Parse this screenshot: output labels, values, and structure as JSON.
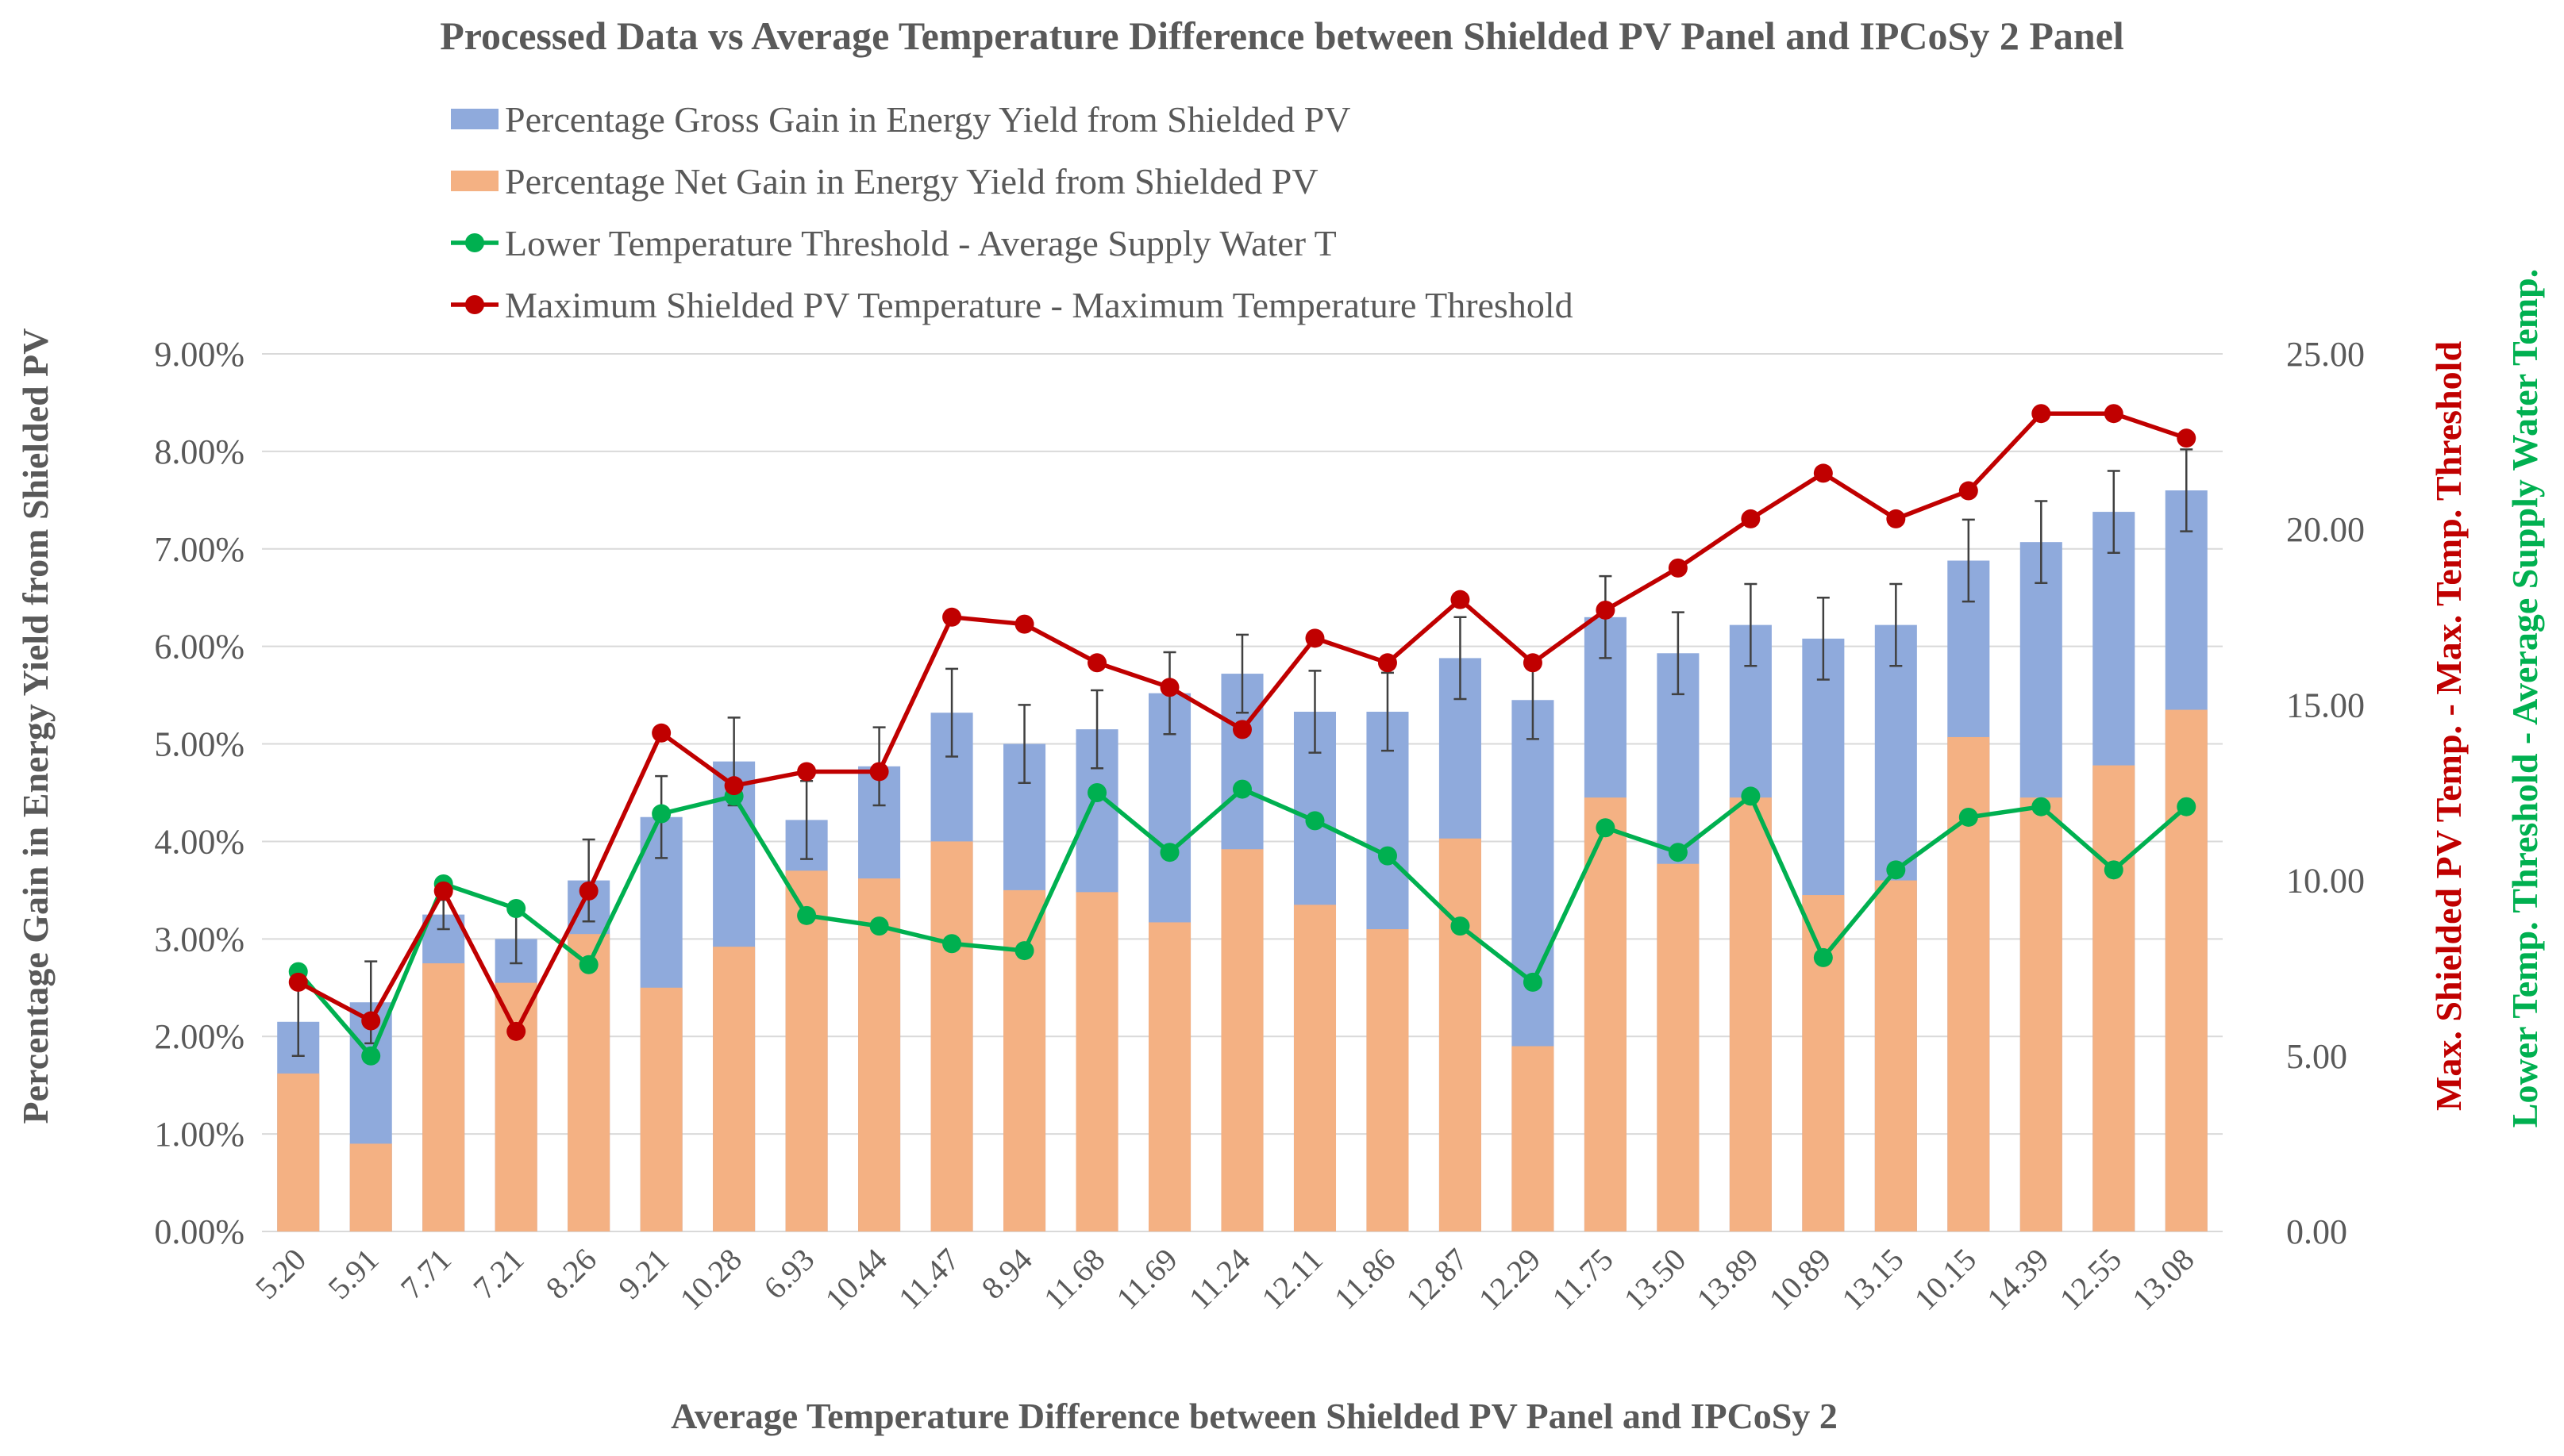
{
  "chart_data": {
    "type": "bar",
    "title": "Processed Data vs Average Temperature Difference between Shielded PV Panel and IPCoSy 2 Panel",
    "xlabel": "Average Temperature Difference between Shielded PV Panel and IPCoSy 2",
    "ylabel_left": "Percentage Gain in Energy Yield from Shielded PV",
    "ylabel_right_1": "Max. Shielded PV Temp. - Max. Temp. Threshold",
    "ylabel_right_2": "Lower Temp. Threshold - Average Supply Water Temp.",
    "categories": [
      "5.20",
      "5.91",
      "7.71",
      "7.21",
      "8.26",
      "9.21",
      "10.28",
      "6.93",
      "10.44",
      "11.47",
      "8.94",
      "11.68",
      "11.69",
      "11.24",
      "12.11",
      "11.86",
      "12.87",
      "12.29",
      "11.75",
      "13.50",
      "13.89",
      "10.89",
      "13.15",
      "10.15",
      "14.39",
      "12.55",
      "13.08"
    ],
    "ylim_left": [
      0,
      0.09
    ],
    "yticks_left": [
      "0.00%",
      "1.00%",
      "2.00%",
      "3.00%",
      "4.00%",
      "5.00%",
      "6.00%",
      "7.00%",
      "8.00%",
      "9.00%"
    ],
    "ylim_right": [
      0,
      25
    ],
    "yticks_right": [
      "0.00",
      "5.00",
      "10.00",
      "15.00",
      "20.00",
      "25.00"
    ],
    "series": [
      {
        "name": "Percentage Gross Gain in Energy Yield from Shielded PV",
        "kind": "bar",
        "axis": "left",
        "color": "#8faadc",
        "values": [
          2.15,
          2.35,
          3.25,
          3.0,
          3.6,
          4.25,
          4.82,
          4.22,
          4.77,
          5.32,
          5.0,
          5.15,
          5.52,
          5.72,
          5.33,
          5.33,
          5.88,
          5.45,
          6.3,
          5.93,
          6.22,
          6.08,
          6.22,
          6.88,
          7.07,
          7.38,
          7.6
        ],
        "error": [
          0.35,
          0.42,
          0.15,
          0.25,
          0.42,
          0.42,
          0.45,
          0.4,
          0.4,
          0.45,
          0.4,
          0.4,
          0.42,
          0.4,
          0.42,
          0.4,
          0.42,
          0.4,
          0.42,
          0.42,
          0.42,
          0.42,
          0.42,
          0.42,
          0.42,
          0.42,
          0.42
        ]
      },
      {
        "name": "Percentage Net Gain in Energy Yield from Shielded PV",
        "kind": "bar",
        "axis": "left",
        "color": "#f4b183",
        "values": [
          1.62,
          0.9,
          2.75,
          2.55,
          3.05,
          2.5,
          2.92,
          3.7,
          3.62,
          4.0,
          3.5,
          3.48,
          3.17,
          3.92,
          3.35,
          3.1,
          4.03,
          1.9,
          4.45,
          3.77,
          4.45,
          3.45,
          3.6,
          5.07,
          4.45,
          4.78,
          5.35
        ]
      },
      {
        "name": "Lower Temperature Threshold - Average Supply Water T",
        "kind": "line",
        "axis": "right",
        "color": "#00b050",
        "values": [
          7.4,
          5.0,
          9.9,
          9.2,
          7.6,
          11.9,
          12.4,
          9.0,
          8.7,
          8.2,
          8.0,
          12.5,
          10.8,
          12.6,
          11.7,
          10.7,
          8.7,
          7.1,
          11.5,
          10.8,
          12.4,
          7.8,
          10.3,
          11.8,
          12.1,
          10.3,
          12.1
        ]
      },
      {
        "name": "Maximum Shielded PV Temperature - Maximum Temperature Threshold",
        "kind": "line",
        "axis": "right",
        "color": "#c00000",
        "values": [
          7.1,
          6.0,
          9.7,
          5.7,
          9.7,
          14.2,
          12.7,
          13.1,
          13.1,
          17.5,
          17.3,
          16.2,
          15.5,
          14.3,
          16.9,
          16.2,
          18.0,
          16.2,
          17.7,
          18.9,
          20.3,
          21.6,
          20.3,
          21.1,
          23.3,
          23.3,
          22.6
        ]
      }
    ],
    "legend_position": "top-left",
    "grid": true
  }
}
